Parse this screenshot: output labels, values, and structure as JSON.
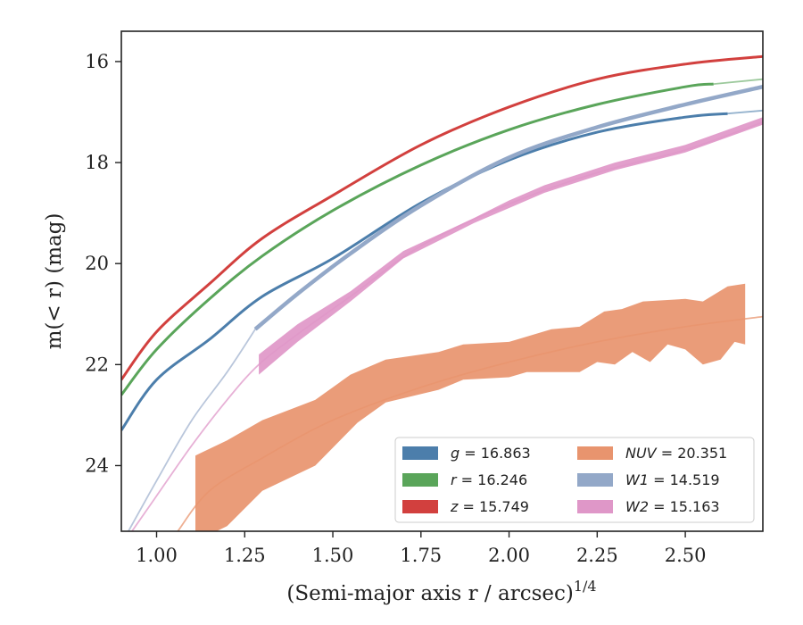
{
  "chart_data": {
    "type": "line",
    "xlabel": "(Semi-major axis r / arcsec)",
    "xlabel_sup": "1/4",
    "ylabel": "m(< r) (mag)",
    "xlim": [
      0.9,
      2.72
    ],
    "ylim": [
      25.3,
      15.4
    ],
    "y_inverted": true,
    "grid": false,
    "legend_position": "lower-right",
    "xticks": [
      1.0,
      1.25,
      1.5,
      1.75,
      2.0,
      2.25,
      2.5
    ],
    "xtick_labels": [
      "1.00",
      "1.25",
      "1.50",
      "1.75",
      "2.00",
      "2.25",
      "2.50"
    ],
    "yticks": [
      16,
      18,
      20,
      22,
      24
    ],
    "ytick_labels": [
      "16",
      "18",
      "20",
      "22",
      "24"
    ],
    "series": [
      {
        "id": "g",
        "band": "g",
        "value": "16.863",
        "color": "#4c7eab",
        "kind": "thin",
        "points": [
          [
            0.9,
            23.3
          ],
          [
            1.0,
            22.3
          ],
          [
            1.15,
            21.5
          ],
          [
            1.3,
            20.65
          ],
          [
            1.5,
            19.9
          ],
          [
            1.75,
            18.8
          ],
          [
            2.0,
            17.95
          ],
          [
            2.25,
            17.4
          ],
          [
            2.5,
            17.1
          ],
          [
            2.72,
            16.97
          ]
        ],
        "extrap_from": 2.62
      },
      {
        "id": "r",
        "band": "r",
        "value": "16.246",
        "color": "#5aa55a",
        "kind": "thin",
        "points": [
          [
            0.9,
            22.6
          ],
          [
            1.0,
            21.7
          ],
          [
            1.15,
            20.7
          ],
          [
            1.3,
            19.85
          ],
          [
            1.5,
            18.95
          ],
          [
            1.75,
            18.05
          ],
          [
            2.0,
            17.35
          ],
          [
            2.25,
            16.85
          ],
          [
            2.5,
            16.5
          ],
          [
            2.72,
            16.35
          ]
        ],
        "extrap_from": 2.58
      },
      {
        "id": "z",
        "band": "z",
        "value": "15.749",
        "color": "#d2403e",
        "kind": "thin",
        "points": [
          [
            0.9,
            22.3
          ],
          [
            1.0,
            21.35
          ],
          [
            1.15,
            20.4
          ],
          [
            1.3,
            19.5
          ],
          [
            1.5,
            18.65
          ],
          [
            1.75,
            17.65
          ],
          [
            2.0,
            16.9
          ],
          [
            2.25,
            16.35
          ],
          [
            2.5,
            16.05
          ],
          [
            2.72,
            15.9
          ]
        ]
      },
      {
        "id": "NUV",
        "band": "NUV",
        "value": "20.351",
        "color": "#e8946e",
        "kind": "band",
        "upper": [
          [
            1.11,
            23.8
          ],
          [
            1.2,
            23.5
          ],
          [
            1.3,
            23.1
          ],
          [
            1.45,
            22.7
          ],
          [
            1.55,
            22.2
          ],
          [
            1.65,
            21.9
          ],
          [
            1.8,
            21.75
          ],
          [
            1.87,
            21.6
          ],
          [
            2.0,
            21.55
          ],
          [
            2.12,
            21.3
          ],
          [
            2.2,
            21.25
          ],
          [
            2.27,
            20.95
          ],
          [
            2.32,
            20.9
          ],
          [
            2.38,
            20.75
          ],
          [
            2.5,
            20.7
          ],
          [
            2.55,
            20.75
          ],
          [
            2.62,
            20.45
          ],
          [
            2.67,
            20.4
          ]
        ],
        "lower": [
          [
            1.11,
            25.5
          ],
          [
            1.2,
            25.2
          ],
          [
            1.3,
            24.5
          ],
          [
            1.45,
            24.0
          ],
          [
            1.57,
            23.15
          ],
          [
            1.65,
            22.75
          ],
          [
            1.8,
            22.5
          ],
          [
            1.87,
            22.3
          ],
          [
            2.0,
            22.25
          ],
          [
            2.05,
            22.15
          ],
          [
            2.2,
            22.15
          ],
          [
            2.25,
            21.95
          ],
          [
            2.3,
            22.0
          ],
          [
            2.35,
            21.75
          ],
          [
            2.4,
            21.95
          ],
          [
            2.45,
            21.6
          ],
          [
            2.5,
            21.7
          ],
          [
            2.55,
            22.0
          ],
          [
            2.6,
            21.9
          ],
          [
            2.64,
            21.55
          ],
          [
            2.67,
            21.6
          ]
        ],
        "model": [
          [
            1.06,
            25.3
          ],
          [
            1.15,
            24.5
          ],
          [
            1.3,
            23.85
          ],
          [
            1.5,
            23.1
          ],
          [
            1.75,
            22.45
          ],
          [
            2.0,
            21.95
          ],
          [
            2.25,
            21.55
          ],
          [
            2.5,
            21.25
          ],
          [
            2.72,
            21.05
          ]
        ]
      },
      {
        "id": "W1",
        "band": "W1",
        "value": "14.519",
        "color": "#93a8c8",
        "kind": "thin",
        "start": 1.28,
        "points": [
          [
            0.92,
            25.3
          ],
          [
            1.0,
            24.3
          ],
          [
            1.1,
            23.1
          ],
          [
            1.2,
            22.15
          ],
          [
            1.28,
            21.3
          ],
          [
            1.4,
            20.6
          ],
          [
            1.55,
            19.8
          ],
          [
            1.75,
            18.85
          ],
          [
            2.0,
            17.9
          ],
          [
            2.25,
            17.3
          ],
          [
            2.5,
            16.85
          ],
          [
            2.72,
            16.5
          ]
        ]
      },
      {
        "id": "W2",
        "band": "W2",
        "value": "15.163",
        "color": "#df97c8",
        "kind": "band",
        "upper": [
          [
            1.29,
            21.8
          ],
          [
            1.4,
            21.2
          ],
          [
            1.55,
            20.55
          ],
          [
            1.7,
            19.75
          ],
          [
            1.9,
            19.1
          ],
          [
            2.0,
            18.75
          ],
          [
            2.1,
            18.45
          ],
          [
            2.3,
            18.0
          ],
          [
            2.5,
            17.65
          ],
          [
            2.72,
            17.1
          ]
        ],
        "lower": [
          [
            1.29,
            22.2
          ],
          [
            1.4,
            21.55
          ],
          [
            1.55,
            20.75
          ],
          [
            1.7,
            19.9
          ],
          [
            1.9,
            19.2
          ],
          [
            2.0,
            18.9
          ],
          [
            2.1,
            18.6
          ],
          [
            2.3,
            18.15
          ],
          [
            2.5,
            17.8
          ],
          [
            2.72,
            17.25
          ]
        ],
        "model": [
          [
            0.93,
            25.3
          ],
          [
            1.0,
            24.6
          ],
          [
            1.1,
            23.6
          ],
          [
            1.2,
            22.7
          ],
          [
            1.29,
            22.0
          ],
          [
            1.4,
            21.4
          ],
          [
            1.55,
            20.65
          ],
          [
            1.75,
            19.65
          ],
          [
            2.0,
            18.82
          ],
          [
            2.25,
            18.2
          ],
          [
            2.5,
            17.75
          ],
          [
            2.72,
            17.2
          ]
        ]
      }
    ],
    "legend": [
      {
        "band": "g",
        "value": "16.863",
        "color": "#4c7eab"
      },
      {
        "band": "r",
        "value": "16.246",
        "color": "#5aa55a"
      },
      {
        "band": "z",
        "value": "15.749",
        "color": "#d2403e"
      },
      {
        "band": "NUV",
        "value": "20.351",
        "color": "#e8946e"
      },
      {
        "band": "W1",
        "value": "14.519",
        "color": "#93a8c8"
      },
      {
        "band": "W2",
        "value": "15.163",
        "color": "#df97c8"
      }
    ]
  }
}
